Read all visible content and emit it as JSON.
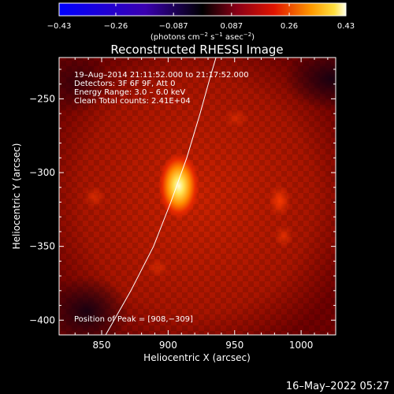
{
  "chart_data": {
    "type": "heatmap",
    "title": "Reconstructed RHESSI Image",
    "xlabel": "Heliocentric X (arcsec)",
    "ylabel": "Heliocentric Y (arcsec)",
    "xlim": [
      818,
      1026
    ],
    "ylim": [
      -410,
      -222
    ],
    "x_ticks": [
      850,
      900,
      950,
      1000
    ],
    "x_tick_labels": [
      "850",
      "900",
      "950",
      "1000"
    ],
    "y_ticks": [
      -250,
      -300,
      -350,
      -400
    ],
    "y_tick_labels": [
      "−250",
      "−300",
      "−350",
      "−400"
    ],
    "colorbar": {
      "range": [
        -0.43,
        0.43
      ],
      "ticks": [
        -0.43,
        -0.26,
        -0.087,
        0.087,
        0.26,
        0.43
      ],
      "tick_labels": [
        "−0.43",
        "−0.26",
        "−0.087",
        "0.087",
        "0.26",
        "0.43"
      ],
      "unit_label": "(photons cm",
      "unit_sup1": "−2",
      "unit_mid": " s",
      "unit_sup2": "−1",
      "unit_mid2": " asec",
      "unit_sup3": "−2",
      "unit_end": ")"
    },
    "annotations": [
      "19–Aug–2014 21:11:52.000 to 21:17:52.000",
      "Detectors: 3F 6F 9F, Att 0",
      "Energy Range: 3.0 – 6.0 keV",
      "Clean    Total counts: 2.41E+04"
    ],
    "peak_label": "Position of Peak = [908,−309]",
    "peak": {
      "x": 908,
      "y": -309
    },
    "limb_points": [
      [
        853,
        -410
      ],
      [
        872,
        -380
      ],
      [
        889,
        -350
      ],
      [
        902,
        -320
      ],
      [
        914,
        -290
      ],
      [
        924,
        -260
      ],
      [
        932,
        -234
      ],
      [
        936,
        -222
      ]
    ]
  },
  "footer": {
    "timestamp": "16–May–2022 05:27"
  }
}
